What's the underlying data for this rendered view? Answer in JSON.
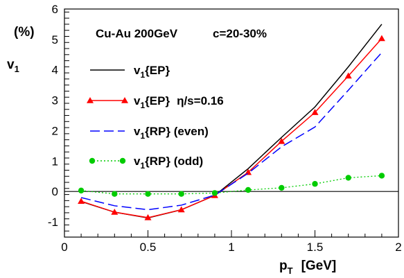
{
  "chart_data": {
    "type": "line",
    "title": "",
    "annotations": {
      "system": "Cu-Au 200GeV",
      "centrality": "c=20-30%"
    },
    "xlabel": {
      "main": "p",
      "sub": "T",
      "unit": "[GeV]"
    },
    "ylabel": {
      "main": "v",
      "sub": "1",
      "unit": "(%)"
    },
    "xlim": [
      0,
      2
    ],
    "ylim": [
      -1.5,
      6
    ],
    "xticks": [
      0,
      0.5,
      1,
      1.5,
      2
    ],
    "xtick_labels": [
      "0",
      "0.5",
      "1",
      "1.5",
      "2"
    ],
    "yticks": [
      -1,
      0,
      1,
      2,
      3,
      4,
      5,
      6
    ],
    "ytick_labels": [
      "-1",
      "0",
      "1",
      "2",
      "3",
      "4",
      "5",
      "6"
    ],
    "grid": false,
    "legend_position": "left",
    "colors": {
      "black": "#000000",
      "red": "#ff0000",
      "blue": "#0000ff",
      "green": "#00cc00"
    },
    "series": [
      {
        "name": "v1{EP}",
        "label_main": "v",
        "label_sub": "1",
        "label_rest": "{EP}",
        "color": "#000000",
        "style": "solid",
        "marker": "none",
        "x": [
          0.1,
          0.3,
          0.5,
          0.7,
          0.9,
          1.1,
          1.3,
          1.5,
          1.7,
          1.9
        ],
        "y": [
          -0.33,
          -0.68,
          -0.87,
          -0.6,
          -0.13,
          0.75,
          1.78,
          2.78,
          4.1,
          5.5
        ]
      },
      {
        "name": "v1{EP} η/s=0.16",
        "label_main": "v",
        "label_sub": "1",
        "label_rest": "{EP}",
        "label_extra": "η/s=0.16",
        "color": "#ff0000",
        "style": "solid",
        "marker": "triangle",
        "x": [
          0.1,
          0.3,
          0.5,
          0.7,
          0.9,
          1.1,
          1.3,
          1.5,
          1.7,
          1.9
        ],
        "y": [
          -0.32,
          -0.68,
          -0.86,
          -0.6,
          -0.13,
          0.63,
          1.65,
          2.6,
          3.8,
          5.03
        ]
      },
      {
        "name": "v1{RP} (even)",
        "label_main": "v",
        "label_sub": "1",
        "label_rest": "{RP}  (even)",
        "color": "#0000ff",
        "style": "dashed",
        "marker": "none",
        "x": [
          0.1,
          0.3,
          0.5,
          0.7,
          0.9,
          1.1,
          1.3,
          1.5,
          1.7,
          1.9
        ],
        "y": [
          -0.2,
          -0.47,
          -0.6,
          -0.45,
          -0.12,
          0.6,
          1.47,
          2.12,
          3.33,
          4.57
        ]
      },
      {
        "name": "v1{RP} (odd)",
        "label_main": "v",
        "label_sub": "1",
        "label_rest": "{RP}  (odd)",
        "color": "#00cc00",
        "style": "dotted",
        "marker": "circle",
        "x": [
          0.1,
          0.3,
          0.5,
          0.7,
          0.9,
          1.1,
          1.3,
          1.5,
          1.7,
          1.9
        ],
        "y": [
          0.03,
          -0.08,
          -0.08,
          -0.08,
          -0.05,
          0.05,
          0.12,
          0.25,
          0.45,
          0.52
        ]
      }
    ]
  }
}
